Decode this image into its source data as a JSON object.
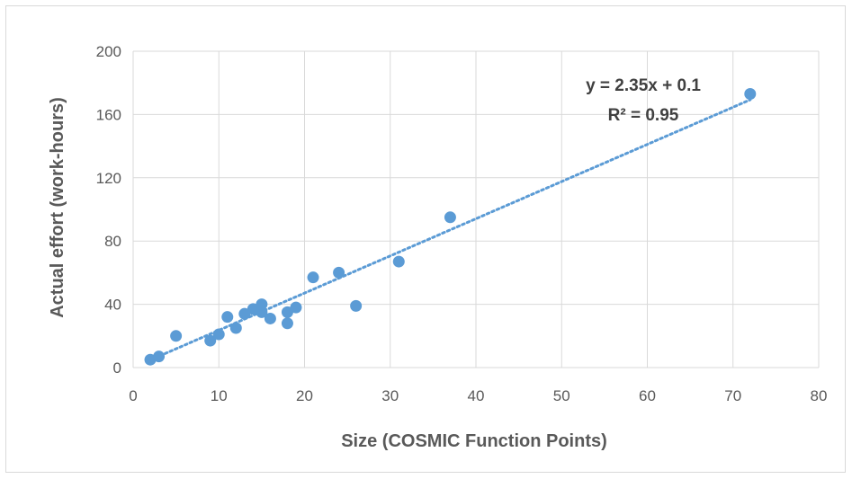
{
  "chart_data": {
    "type": "scatter",
    "title": "",
    "xlabel": "Size (COSMIC Function Points)",
    "ylabel": "Actual effort (work-hours)",
    "xlim": [
      0,
      80
    ],
    "ylim": [
      0,
      200
    ],
    "xticks": [
      0,
      10,
      20,
      30,
      40,
      50,
      60,
      70,
      80
    ],
    "yticks": [
      0,
      40,
      80,
      120,
      160,
      200
    ],
    "grid": true,
    "legend": "none",
    "series": [
      {
        "color": "#5b9bd5",
        "points": [
          {
            "x": 2,
            "y": 5
          },
          {
            "x": 3,
            "y": 7
          },
          {
            "x": 5,
            "y": 20
          },
          {
            "x": 9,
            "y": 17
          },
          {
            "x": 10,
            "y": 21
          },
          {
            "x": 11,
            "y": 32
          },
          {
            "x": 12,
            "y": 25
          },
          {
            "x": 13,
            "y": 34
          },
          {
            "x": 14,
            "y": 37
          },
          {
            "x": 15,
            "y": 35
          },
          {
            "x": 15,
            "y": 40
          },
          {
            "x": 16,
            "y": 31
          },
          {
            "x": 18,
            "y": 28
          },
          {
            "x": 18,
            "y": 35
          },
          {
            "x": 19,
            "y": 38
          },
          {
            "x": 21,
            "y": 57
          },
          {
            "x": 24,
            "y": 60
          },
          {
            "x": 26,
            "y": 39
          },
          {
            "x": 31,
            "y": 67
          },
          {
            "x": 37,
            "y": 95
          },
          {
            "x": 72,
            "y": 173
          }
        ]
      }
    ],
    "trendline": {
      "type": "linear",
      "slope": 2.35,
      "intercept": 0.1,
      "x_range": [
        2,
        72
      ],
      "equation_label": "y = 2.35x + 0.1",
      "r2_label": "R² = 0.95",
      "color": "#5b9bd5"
    }
  }
}
